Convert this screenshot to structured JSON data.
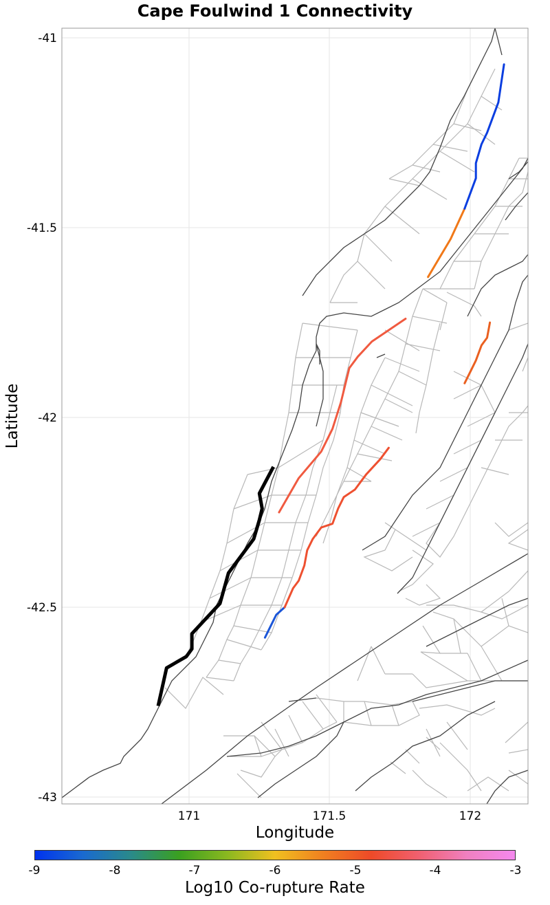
{
  "title": "Cape Foulwind 1 Connectivity",
  "xlabel": "Longitude",
  "ylabel": "Latitude",
  "x_ticks": [
    "171",
    "171.5",
    "172"
  ],
  "y_ticks": [
    "-41",
    "-41.5",
    "-42",
    "-42.5",
    "-43"
  ],
  "colorbar": {
    "label": "Log10 Co-rupture Rate",
    "ticks": [
      "-9",
      "-8",
      "-7",
      "-6",
      "-5",
      "-4",
      "-3"
    ],
    "range": [
      -9,
      -3
    ],
    "stops": [
      "#0033ee",
      "#1a6ad0",
      "#2a8a8a",
      "#3aa020",
      "#8ab820",
      "#f0c020",
      "#f08020",
      "#ee4a28",
      "#f06070",
      "#f080c0",
      "#f488ee"
    ]
  },
  "chart_data": {
    "type": "map",
    "title": "Cape Foulwind 1 Connectivity",
    "xlabel": "Longitude",
    "ylabel": "Latitude",
    "xlim": [
      170.5,
      172.2
    ],
    "ylim": [
      -43.02,
      -40.98
    ],
    "grid": true,
    "source_fault": {
      "color": "#000000",
      "points": [
        [
          170.89,
          -42.76
        ],
        [
          170.92,
          -42.66
        ],
        [
          170.99,
          -42.63
        ],
        [
          171.01,
          -42.61
        ],
        [
          171.01,
          -42.57
        ],
        [
          171.11,
          -42.49
        ],
        [
          171.14,
          -42.41
        ],
        [
          171.23,
          -42.32
        ],
        [
          171.25,
          -42.27
        ],
        [
          171.26,
          -42.24
        ],
        [
          171.25,
          -42.2
        ],
        [
          171.3,
          -42.13
        ]
      ]
    },
    "co_rupture_segments": [
      {
        "log10_rate": -8.8,
        "color": "#1a55d8",
        "points": [
          [
            171.27,
            -42.58
          ],
          [
            171.31,
            -42.52
          ],
          [
            171.34,
            -42.5
          ]
        ]
      },
      {
        "log10_rate": -4.3,
        "color": "#ee5030",
        "points": [
          [
            171.34,
            -42.5
          ],
          [
            171.37,
            -42.45
          ],
          [
            171.39,
            -42.43
          ],
          [
            171.41,
            -42.39
          ],
          [
            171.42,
            -42.35
          ],
          [
            171.44,
            -42.32
          ],
          [
            171.47,
            -42.29
          ],
          [
            171.51,
            -42.28
          ],
          [
            171.53,
            -42.24
          ],
          [
            171.55,
            -42.21
          ],
          [
            171.59,
            -42.19
          ],
          [
            171.61,
            -42.17
          ],
          [
            171.63,
            -42.15
          ],
          [
            171.68,
            -42.11
          ],
          [
            171.71,
            -42.08
          ]
        ]
      },
      {
        "log10_rate": -4.1,
        "color": "#f05a40",
        "points": [
          [
            171.32,
            -42.25
          ],
          [
            171.39,
            -42.16
          ],
          [
            171.47,
            -42.09
          ],
          [
            171.51,
            -42.03
          ],
          [
            171.54,
            -41.96
          ],
          [
            171.57,
            -41.87
          ],
          [
            171.6,
            -41.84
          ],
          [
            171.65,
            -41.8
          ],
          [
            171.69,
            -41.78
          ],
          [
            171.77,
            -41.74
          ]
        ]
      },
      {
        "log10_rate": -4.6,
        "color": "#ea6020",
        "points": [
          [
            171.98,
            -41.91
          ],
          [
            172.0,
            -41.88
          ],
          [
            172.02,
            -41.85
          ],
          [
            172.04,
            -41.81
          ],
          [
            172.06,
            -41.79
          ],
          [
            172.07,
            -41.75
          ]
        ]
      },
      {
        "log10_rate": -5.0,
        "color": "#f07818",
        "points": [
          [
            171.85,
            -41.63
          ],
          [
            171.93,
            -41.53
          ],
          [
            171.98,
            -41.45
          ]
        ]
      },
      {
        "log10_rate": -9.0,
        "color": "#0a3ee0",
        "points": [
          [
            171.98,
            -41.45
          ],
          [
            172.02,
            -41.37
          ],
          [
            172.02,
            -41.33
          ],
          [
            172.04,
            -41.28
          ],
          [
            172.06,
            -41.25
          ],
          [
            172.1,
            -41.17
          ],
          [
            172.12,
            -41.07
          ]
        ]
      }
    ]
  }
}
